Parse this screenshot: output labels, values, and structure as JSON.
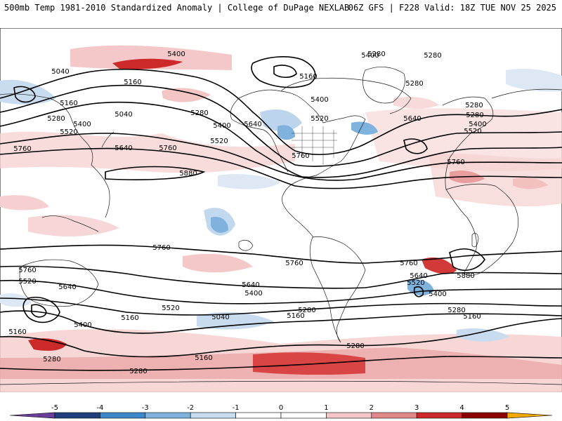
{
  "header": {
    "left": "500mb Temp 1981-2010 Standardized Anomaly | College of DuPage NEXLAB",
    "right": "06Z GFS | F228 Valid: 18Z TUE NOV 25 2025"
  },
  "colorbar": {
    "ticks": [
      "-5",
      "-4",
      "-3",
      "-2",
      "-1",
      "0",
      "1",
      "2",
      "3",
      "4",
      "5"
    ],
    "colors": [
      "#6a3d9a",
      "#213f7a",
      "#3a86c8",
      "#7fb2dc",
      "#c9dcef",
      "#ffffff",
      "#ffffff",
      "#f3c7c7",
      "#e28a8a",
      "#cc2a2a",
      "#8b0000",
      "#f2a900"
    ]
  },
  "contour_labels": {
    "l5400a": "5400",
    "l5280a": "5280",
    "l5040a": "5040",
    "l5160a": "5160",
    "l5160b": "5160",
    "l5040b": "5040",
    "l5280b": "5280",
    "l5280c": "5280",
    "l5400b": "5400",
    "l5520a": "5520",
    "l5640a": "5640",
    "l5760a": "5760",
    "l5760b": "5760",
    "l5400c": "5400",
    "l5640b": "5640",
    "l5520b": "5520",
    "l5520c": "5520",
    "l5280d": "5280",
    "l5160c": "5160",
    "l5400d": "5400",
    "l5280e": "5280",
    "l5640c": "5640",
    "l5400e": "5400",
    "l5280f": "5280",
    "l5520d": "5520",
    "l5760c": "5760",
    "l5880a": "5880",
    "l5760d": "5760",
    "l5760e": "5760",
    "l5760f": "5760",
    "l5520e": "5520",
    "l5640d": "5640",
    "l5520f": "5520",
    "l5400f": "5400",
    "l5160d": "5160",
    "l5640e": "5640",
    "l5400g": "5400",
    "l5280g": "5280",
    "l5160e": "5160",
    "l5040c": "5040",
    "l5760g": "5760",
    "l5760h": "5760",
    "l5640f": "5640",
    "l5520g": "5520",
    "l5400h": "5400",
    "l5880b": "5880",
    "l5280h": "5280",
    "l5160f": "5160",
    "l5280i": "5280",
    "l5160g": "5160",
    "l5280j": "5280",
    "l5280k": "5280",
    "l5400i": "5400",
    "l5160h": "5160",
    "l5280l": "5280"
  }
}
